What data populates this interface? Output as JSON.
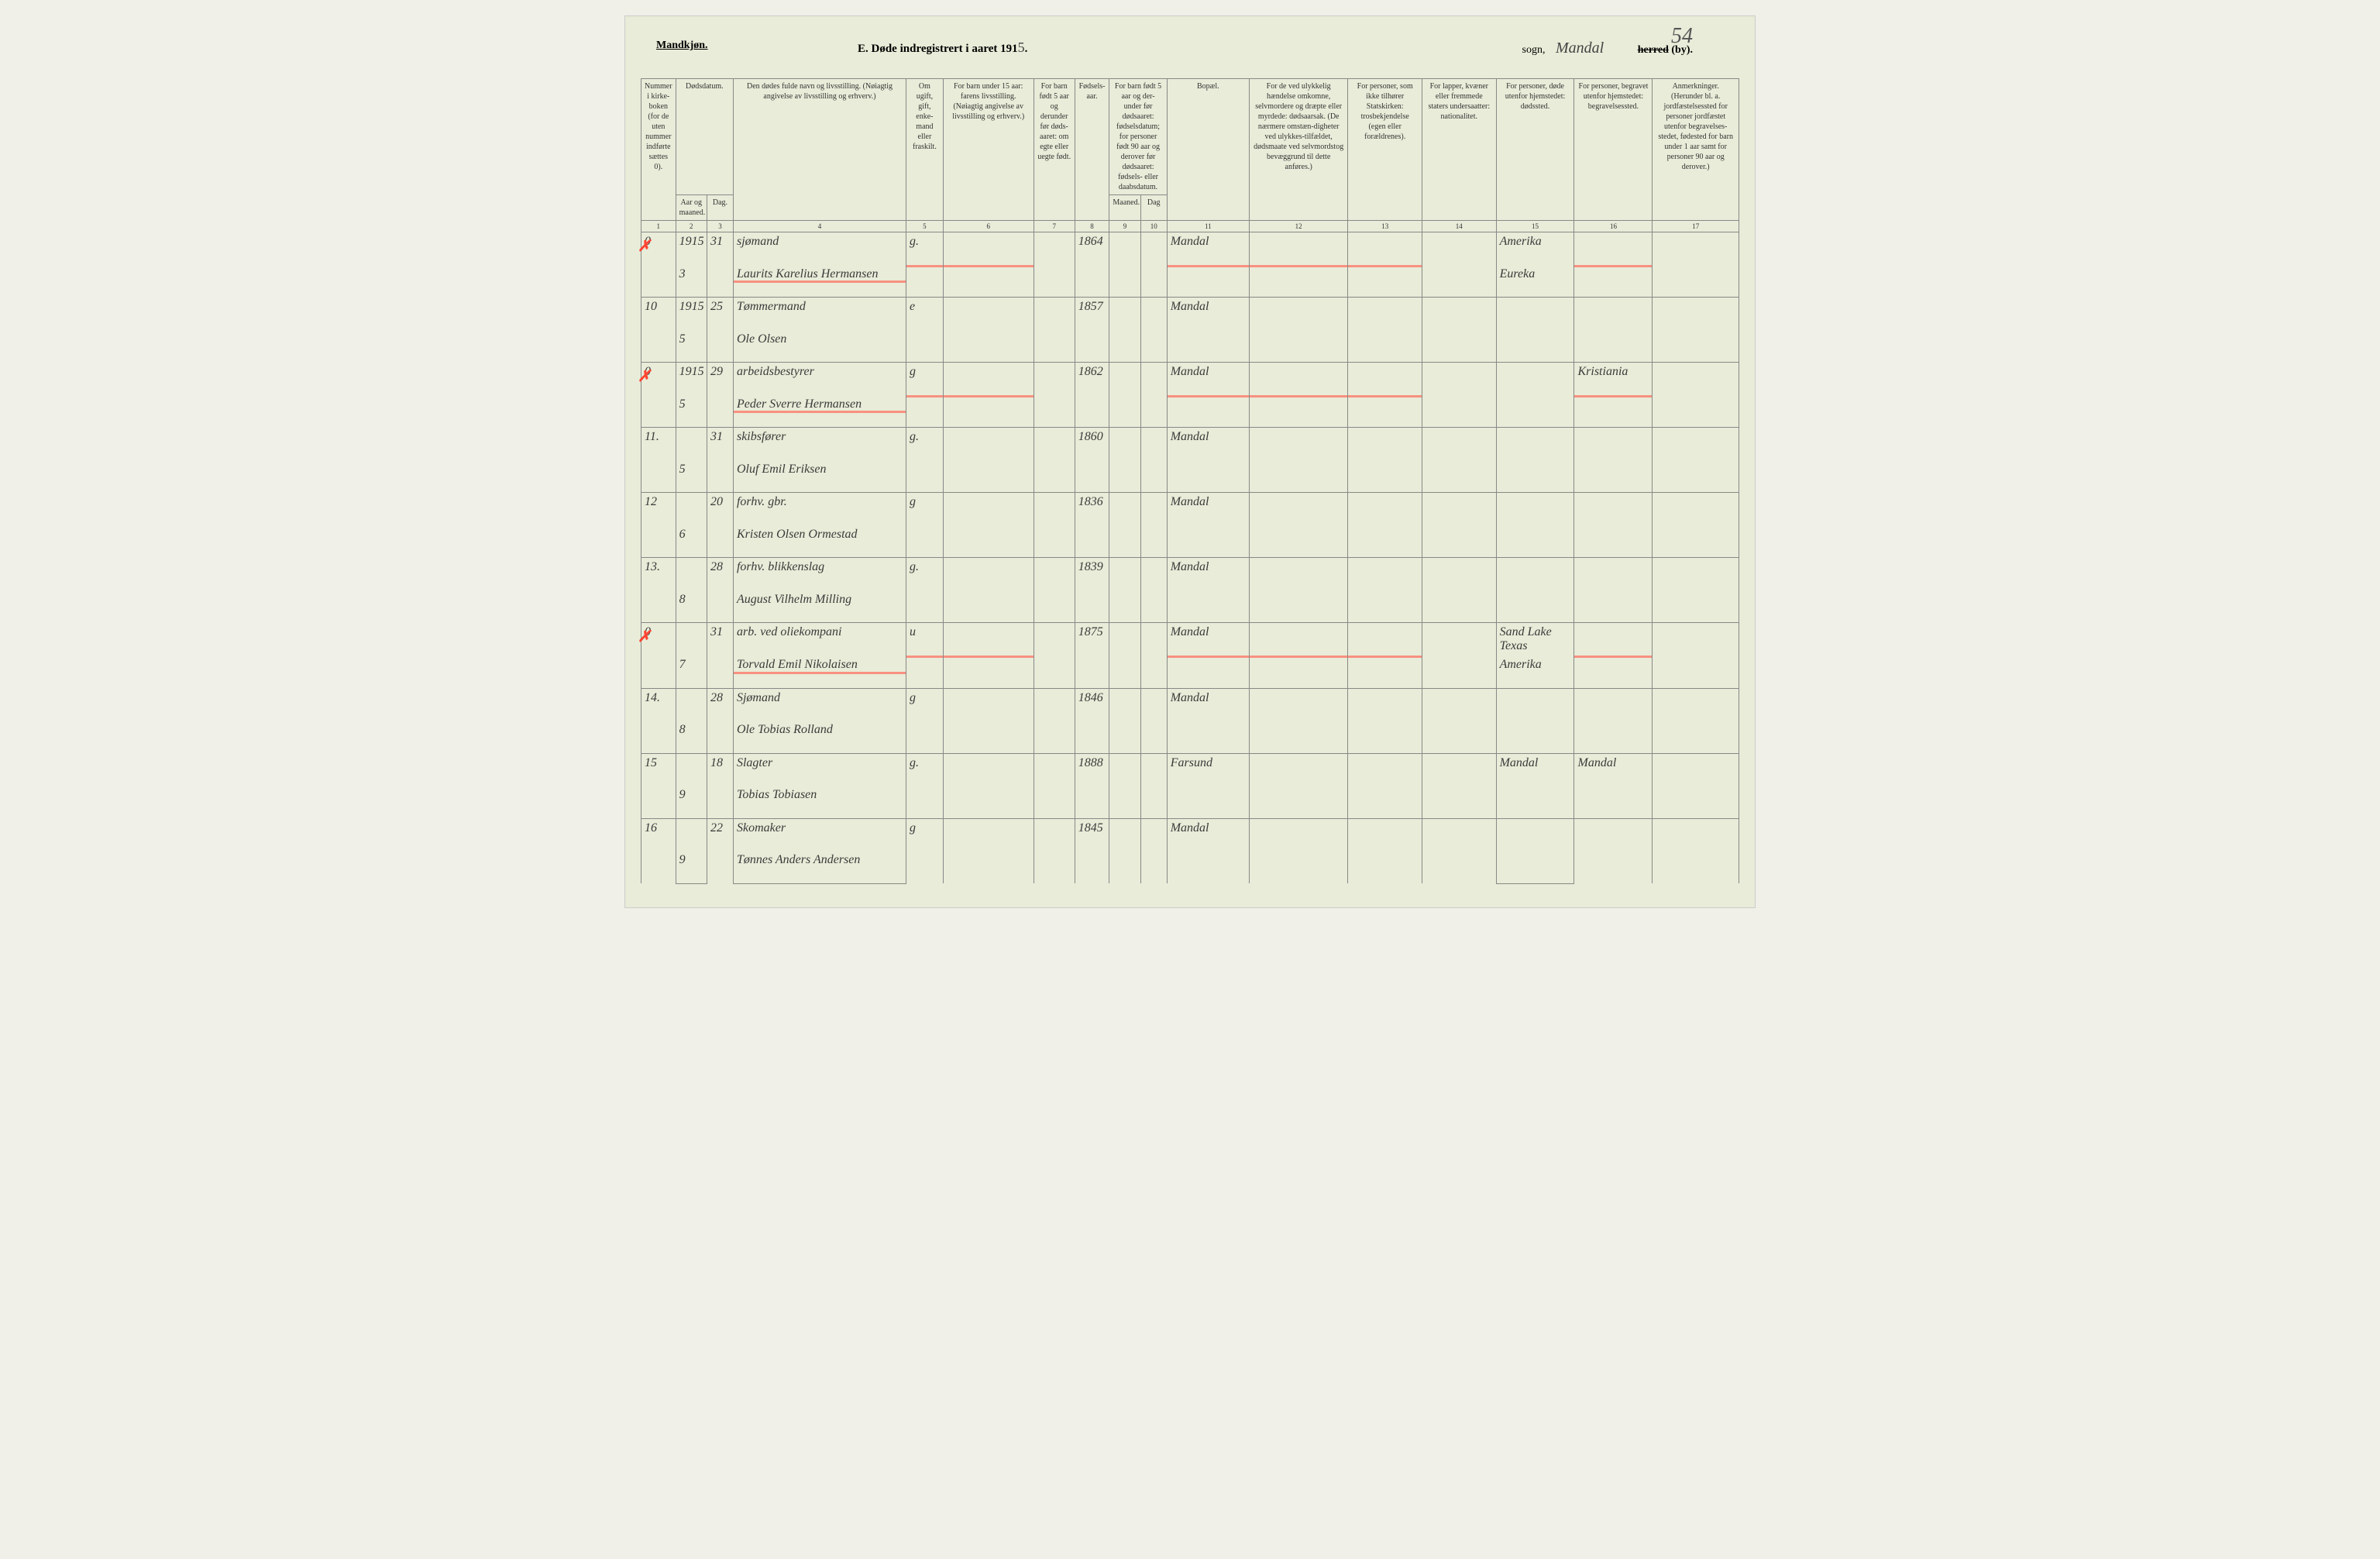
{
  "page_number_hand": "54",
  "header": {
    "left": "Mandkjøn.",
    "center_prefix": "E.  Døde indregistrert i aaret 191",
    "year_suffix": "5",
    "sogn_label": "sogn,",
    "sogn_value": "Mandal",
    "herred_label_strike": "herred",
    "herred_label_rest": " (by)."
  },
  "columns": {
    "h1": "Nummer i kirke-boken (for de uten nummer indførte sættes 0).",
    "h2_top": "Dødsdatum.",
    "h2": "Aar og maaned.",
    "h3": "Dag.",
    "h4": "Den dødes fulde navn og livsstilling.\n(Nøiagtig angivelse av livsstilling og erhverv.)",
    "h5": "Om ugift, gift, enke-mand eller fraskilt.",
    "h6": "For barn under 15 aar:\nfarens livsstilling.\n(Nøiagtig angivelse av livsstilling og erhverv.)",
    "h7": "For barn født 5 aar og derunder før døds-aaret: om egte eller uegte født.",
    "h8": "Fødsels-aar.",
    "h9_top": "For barn født 5 aar og der-under før dødsaaret: fødselsdatum; for personer født 90 aar og derover før dødsaaret: fødsels- eller daabsdatum.",
    "h9": "Maaned.",
    "h10": "Dag",
    "h11": "Bopæl.",
    "h12": "For de ved ulykkelig hændelse omkomne, selvmordere og dræpte eller myrdede: dødsaarsak. (De nærmere omstæn-digheter ved ulykkes-tilfældet, dødsmaate ved selvmordstog bevæggrund til dette anføres.)",
    "h13": "For personer, som ikke tilhører Statskirken: trosbekjendelse (egen eller forældrenes).",
    "h14": "For lapper, kvæner eller fremmede staters undersaatter: nationalitet.",
    "h15": "For personer, døde utenfor hjemstedet: dødssted.",
    "h16": "For personer, begravet utenfor hjemstedet: begravelsessted.",
    "h17": "Anmerkninger. (Herunder bl. a. jordfæstelsessted for personer jordfæstet utenfor begravelses-stedet, fødested for barn under 1 aar samt for personer 90 aar og derover.)"
  },
  "colnums": [
    "1",
    "2",
    "3",
    "4",
    "5",
    "6",
    "7",
    "8",
    "9",
    "10",
    "11",
    "12",
    "13",
    "14",
    "15",
    "16",
    "17"
  ],
  "rows": [
    {
      "num": "0",
      "year": "1915",
      "mon": "3",
      "day": "31",
      "occ": "sjømand",
      "name": "Laurits Karelius Hermansen",
      "marital": "g.",
      "birth": "1864",
      "place": "Mandal",
      "c15": "Amerika",
      "c15b": "Eureka",
      "red": true
    },
    {
      "num": "10",
      "year": "1915",
      "mon": "5",
      "day": "25",
      "occ": "Tømmermand",
      "name": "Ole Olsen",
      "marital": "e",
      "birth": "1857",
      "place": "Mandal"
    },
    {
      "num": "0",
      "year": "1915",
      "mon": "5",
      "day": "29",
      "occ": "arbeidsbestyrer",
      "name": "Peder Sverre Hermansen",
      "marital": "g",
      "birth": "1862",
      "place": "Mandal",
      "c16": "Kristiania",
      "red": true
    },
    {
      "num": "11.",
      "year": "",
      "mon": "5",
      "day": "31",
      "occ": "skibsfører",
      "name": "Oluf Emil Eriksen",
      "marital": "g.",
      "birth": "1860",
      "place": "Mandal"
    },
    {
      "num": "12",
      "year": "",
      "mon": "6",
      "day": "20",
      "occ": "forhv. gbr.",
      "name": "Kristen Olsen Ormestad",
      "marital": "g",
      "birth": "1836",
      "place": "Mandal"
    },
    {
      "num": "13.",
      "year": "",
      "mon": "8",
      "day": "28",
      "occ": "forhv. blikkenslag",
      "name": "August Vilhelm Milling",
      "marital": "g.",
      "birth": "1839",
      "place": "Mandal"
    },
    {
      "num": "0",
      "year": "",
      "mon": "7",
      "day": "31",
      "occ": "arb. ved oliekompani",
      "name": "Torvald Emil Nikolaisen",
      "marital": "u",
      "birth": "1875",
      "place": "Mandal",
      "c15": "Sand Lake Texas",
      "c15b": "Amerika",
      "red": true
    },
    {
      "num": "14.",
      "year": "",
      "mon": "8",
      "day": "28",
      "occ": "Sjømand",
      "name": "Ole Tobias Rolland",
      "marital": "g",
      "birth": "1846",
      "place": "Mandal"
    },
    {
      "num": "15",
      "year": "",
      "mon": "9",
      "day": "18",
      "occ": "Slagter",
      "name": "Tobias Tobiasen",
      "marital": "g.",
      "birth": "1888",
      "place": "Farsund",
      "c15": "Mandal",
      "c16": "Mandal"
    },
    {
      "num": "16",
      "year": "",
      "mon": "9",
      "day": "22",
      "occ": "Skomaker",
      "name": "Tønnes Anders Andersen",
      "marital": "g",
      "birth": "1845",
      "place": "Mandal"
    }
  ]
}
